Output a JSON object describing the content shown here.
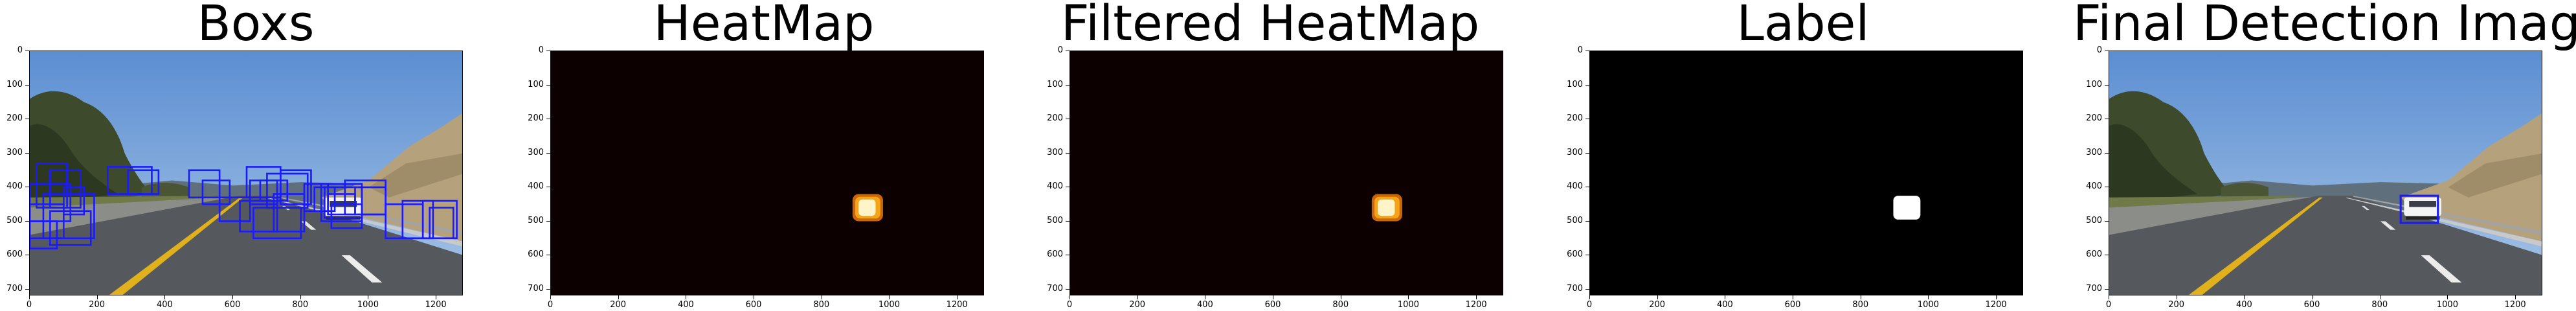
{
  "figure": {
    "panels": [
      {
        "title": "Boxs",
        "kind": "road_boxes"
      },
      {
        "title": "HeatMap",
        "kind": "heatmap"
      },
      {
        "title": "Filtered HeatMap",
        "kind": "heatmap"
      },
      {
        "title": "Label",
        "kind": "label"
      },
      {
        "title": "Final Detection Image",
        "kind": "road_final"
      }
    ],
    "y_ticks": [
      "0",
      "100",
      "200",
      "300",
      "400",
      "500",
      "600",
      "700"
    ],
    "x_ticks": [
      "0",
      "200",
      "400",
      "600",
      "800",
      "1000",
      "1200"
    ],
    "x_range": [
      0,
      1280
    ],
    "y_range": [
      0,
      720
    ],
    "colors": {
      "box": "#1a1aff",
      "heat_background": "#0d0000",
      "heat_blob": "#f6a417",
      "label_background": "#000000",
      "label_blob": "#ffffff",
      "sky": "#6f9bd3",
      "road": "#5c5e63"
    }
  }
}
